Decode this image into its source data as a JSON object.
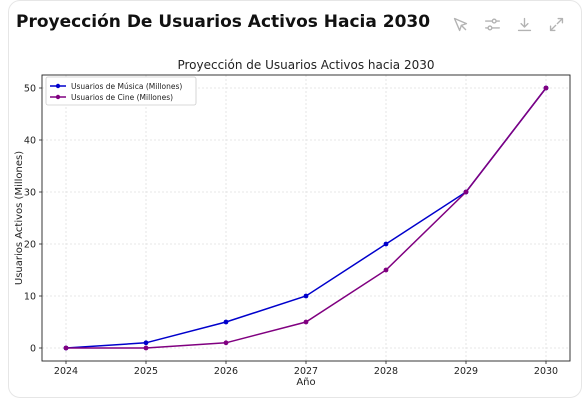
{
  "header": {
    "title": "Proyección De Usuarios Activos Hacia 2030",
    "tools": [
      {
        "icon": "magic-wand-icon"
      },
      {
        "icon": "sliders-icon"
      },
      {
        "icon": "download-icon"
      },
      {
        "icon": "expand-icon"
      }
    ]
  },
  "chart_data": {
    "type": "line",
    "title": "Proyección de Usuarios Activos hacia 2030",
    "xlabel": "Año",
    "ylabel": "Usuarios Activos (Millones)",
    "x": [
      "2024",
      "2025",
      "2026",
      "2027",
      "2028",
      "2029",
      "2030"
    ],
    "ylim": [
      -2.5,
      52.5
    ],
    "yticks": [
      0,
      10,
      20,
      30,
      40,
      50
    ],
    "grid": true,
    "legend": "top-left",
    "series": [
      {
        "name": "Usuarios de Música (Millones)",
        "color": "#0000cc",
        "values": [
          0,
          1,
          5,
          10,
          20,
          30,
          50
        ]
      },
      {
        "name": "Usuarios de Cine (Millones)",
        "color": "#800080",
        "values": [
          0,
          0,
          1,
          5,
          15,
          30,
          50
        ]
      }
    ]
  }
}
